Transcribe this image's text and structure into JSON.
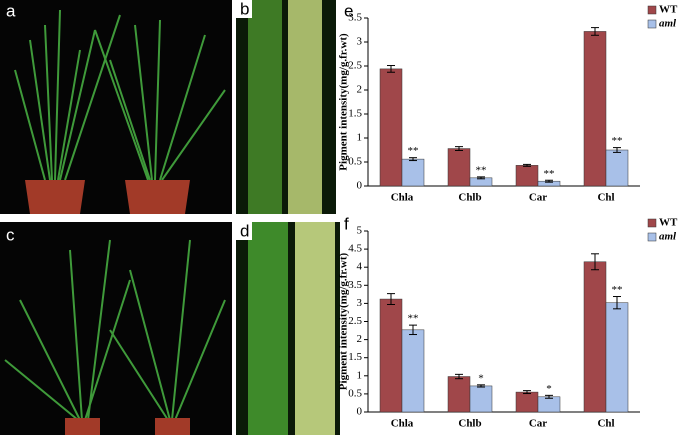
{
  "panel_labels": [
    "a",
    "b",
    "c",
    "d"
  ],
  "chart_data": [
    {
      "type": "bar",
      "panel_label": "e",
      "y_label": "Pigment intensity(mg/g.fr.wt)",
      "categories": [
        "Chla",
        "Chlb",
        "Car",
        "Chl"
      ],
      "series": [
        {
          "name": "WT",
          "color": "#a0474a",
          "values": [
            2.44,
            0.78,
            0.43,
            3.22
          ],
          "errors": [
            0.07,
            0.04,
            0.02,
            0.08
          ]
        },
        {
          "name": "aml",
          "color": "#a8c0e8",
          "values": [
            0.56,
            0.17,
            0.1,
            0.75
          ],
          "errors": [
            0.03,
            0.02,
            0.02,
            0.05
          ],
          "annotations": [
            "**",
            "**",
            "**",
            "**"
          ]
        }
      ],
      "ylim": [
        0,
        3.5
      ],
      "yticks": [
        0,
        0.5,
        1,
        1.5,
        2,
        2.5,
        3,
        3.5
      ]
    },
    {
      "type": "bar",
      "panel_label": "f",
      "y_label": "Pigment intensity(mg/g.fr.wt)",
      "categories": [
        "Chla",
        "Chlb",
        "Car",
        "Chl"
      ],
      "series": [
        {
          "name": "WT",
          "color": "#a0474a",
          "values": [
            3.12,
            0.98,
            0.55,
            4.15
          ],
          "errors": [
            0.15,
            0.06,
            0.04,
            0.22
          ]
        },
        {
          "name": "aml",
          "color": "#a8c0e8",
          "values": [
            2.27,
            0.72,
            0.42,
            3.02
          ],
          "errors": [
            0.13,
            0.03,
            0.04,
            0.17
          ],
          "annotations": [
            "**",
            "*",
            "*",
            "**"
          ]
        }
      ],
      "ylim": [
        0,
        5
      ],
      "yticks": [
        0,
        0.5,
        1,
        1.5,
        2,
        2.5,
        3,
        3.5,
        4,
        4.5,
        5
      ]
    }
  ]
}
